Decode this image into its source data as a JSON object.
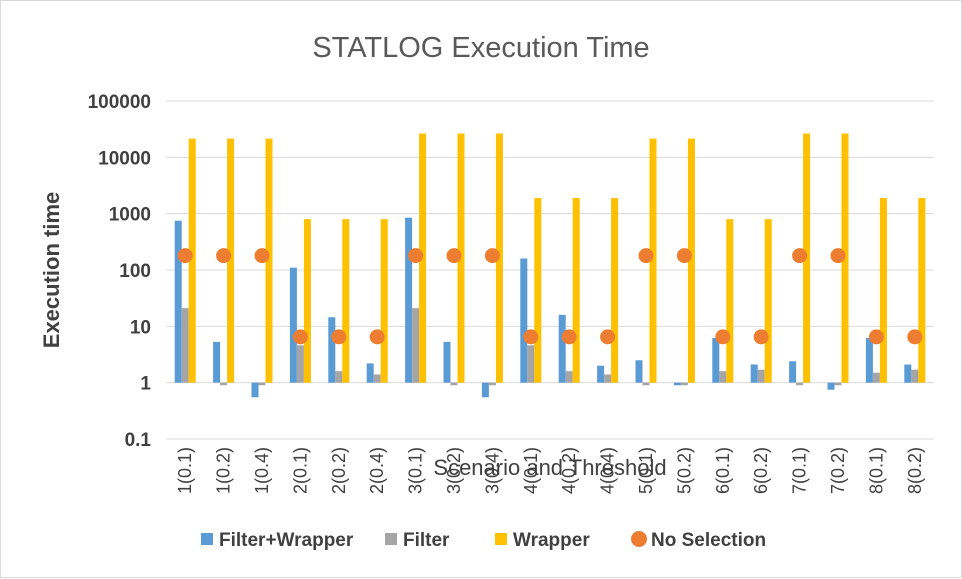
{
  "chart_data": {
    "type": "bar",
    "title": "STATLOG Execution Time",
    "xlabel": "Scenario and Threshold",
    "ylabel": "Execution time",
    "yscale": "log",
    "ylim": [
      0.1,
      100000
    ],
    "yticks": [
      "100000",
      "10000",
      "1000",
      "100",
      "10",
      "1",
      "0.1"
    ],
    "grid": true,
    "legend_position": "bottom",
    "categories": [
      "1(0.1)",
      "1(0.2)",
      "1(0.4)",
      "2(0.1)",
      "2(0.2)",
      "2(0.4)",
      "3(0.1)",
      "3(0.2)",
      "3(0.4)",
      "4(0.1)",
      "4(0.2)",
      "4(0.4)",
      "5(0.1)",
      "5(0.2)",
      "6(0.1)",
      "6(0.2)",
      "7(0.1)",
      "7(0.2)",
      "8(0.1)",
      "8(0.2)"
    ],
    "series": [
      {
        "name": "Filter+Wrapper",
        "kind": "bar",
        "color": "#5b9bd5",
        "values": [
          750,
          5.3,
          0.55,
          110,
          14.5,
          2.2,
          850,
          5.3,
          0.55,
          160,
          16,
          2.0,
          2.5,
          0.9,
          6.2,
          2.1,
          2.4,
          0.75,
          6.2,
          2.1
        ]
      },
      {
        "name": "Filter",
        "kind": "bar",
        "color": "#a5a5a5",
        "values": [
          21,
          0.9,
          0.9,
          4.6,
          1.6,
          1.4,
          21,
          0.9,
          0.9,
          4.6,
          1.6,
          1.4,
          0.9,
          0.9,
          1.6,
          1.7,
          0.9,
          0.9,
          1.5,
          1.7
        ]
      },
      {
        "name": "Wrapper",
        "kind": "bar",
        "color": "#ffc000",
        "values": [
          21500,
          21500,
          21500,
          800,
          800,
          800,
          26500,
          26500,
          26500,
          1900,
          1900,
          1900,
          21500,
          21500,
          800,
          800,
          26500,
          26500,
          1900,
          1900
        ]
      },
      {
        "name": "No Selection",
        "kind": "marker",
        "color": "#ed7d31",
        "values": [
          180,
          180,
          180,
          6.5,
          6.5,
          6.5,
          180,
          180,
          180,
          6.5,
          6.5,
          6.5,
          180,
          180,
          6.5,
          6.5,
          180,
          180,
          6.5,
          6.5
        ]
      }
    ]
  },
  "colors": {
    "title": "#595959",
    "text": "#404040",
    "grid": "#d9d9d9",
    "axis": "#bfbfbf"
  }
}
